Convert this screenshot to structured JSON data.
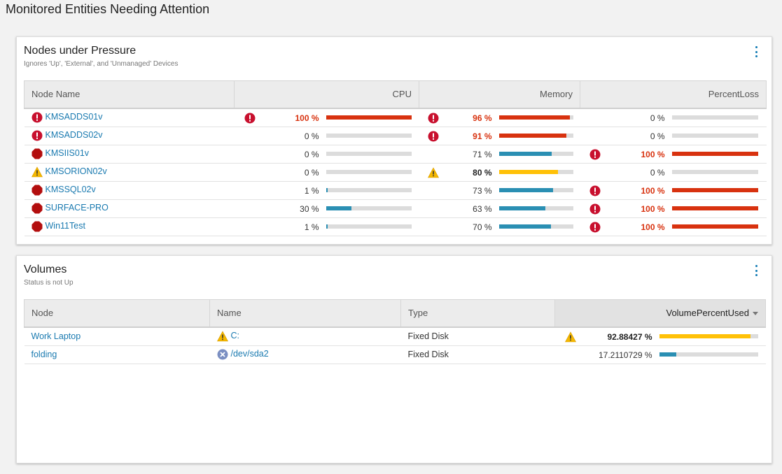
{
  "page": {
    "title": "Monitored Entities Needing Attention"
  },
  "colors": {
    "critical": "#d8320f",
    "warning": "#ffc107",
    "normal": "#2a8fb3",
    "track": "#dcdcdc",
    "link": "#1a7ab0"
  },
  "nodes_widget": {
    "title": "Nodes under Pressure",
    "subtitle": "Ignores 'Up', 'External', and 'Unmanaged' Devices",
    "columns": {
      "name": "Node Name",
      "cpu": "CPU",
      "memory": "Memory",
      "loss": "PercentLoss"
    },
    "rows": [
      {
        "name": "KMSADDS01v",
        "status_icon": "critical-alert-icon",
        "cpu": {
          "label": "100 %",
          "pct": 100,
          "level": "critical"
        },
        "mem": {
          "label": "96 %",
          "pct": 96,
          "level": "critical"
        },
        "loss": {
          "label": "0 %",
          "pct": 0,
          "level": "normal"
        }
      },
      {
        "name": "KMSADDS02v",
        "status_icon": "critical-alert-icon",
        "cpu": {
          "label": "0 %",
          "pct": 0,
          "level": "normal"
        },
        "mem": {
          "label": "91 %",
          "pct": 91,
          "level": "critical"
        },
        "loss": {
          "label": "0 %",
          "pct": 0,
          "level": "normal"
        }
      },
      {
        "name": "KMSIIS01v",
        "status_icon": "down-octagon-icon",
        "cpu": {
          "label": "0 %",
          "pct": 0,
          "level": "normal"
        },
        "mem": {
          "label": "71 %",
          "pct": 71,
          "level": "normal"
        },
        "loss": {
          "label": "100 %",
          "pct": 100,
          "level": "critical"
        }
      },
      {
        "name": "KMSORION02v",
        "status_icon": "warning-triangle-icon",
        "cpu": {
          "label": "0 %",
          "pct": 0,
          "level": "normal"
        },
        "mem": {
          "label": "80 %",
          "pct": 80,
          "level": "warning"
        },
        "loss": {
          "label": "0 %",
          "pct": 0,
          "level": "normal"
        }
      },
      {
        "name": "KMSSQL02v",
        "status_icon": "down-octagon-icon",
        "cpu": {
          "label": "1 %",
          "pct": 1,
          "level": "normal"
        },
        "mem": {
          "label": "73 %",
          "pct": 73,
          "level": "normal"
        },
        "loss": {
          "label": "100 %",
          "pct": 100,
          "level": "critical"
        }
      },
      {
        "name": "SURFACE-PRO",
        "status_icon": "down-octagon-icon",
        "cpu": {
          "label": "30 %",
          "pct": 30,
          "level": "normal"
        },
        "mem": {
          "label": "63 %",
          "pct": 63,
          "level": "normal"
        },
        "loss": {
          "label": "100 %",
          "pct": 100,
          "level": "critical"
        }
      },
      {
        "name": "Win11Test",
        "status_icon": "down-octagon-icon",
        "cpu": {
          "label": "1 %",
          "pct": 1,
          "level": "normal"
        },
        "mem": {
          "label": "70 %",
          "pct": 70,
          "level": "normal"
        },
        "loss": {
          "label": "100 %",
          "pct": 100,
          "level": "critical"
        }
      }
    ]
  },
  "volumes_widget": {
    "title": "Volumes",
    "subtitle": "Status is not Up",
    "columns": {
      "node": "Node",
      "name": "Name",
      "type": "Type",
      "used": "VolumePercentUsed"
    },
    "rows": [
      {
        "node": "Work Laptop",
        "name": "C:",
        "status_icon": "warning-triangle-icon",
        "type": "Fixed Disk",
        "used": {
          "label": "92.88427 %",
          "pct": 92.88427,
          "level": "warning"
        }
      },
      {
        "node": "folding",
        "name": "/dev/sda2",
        "status_icon": "unknown-x-icon",
        "type": "Fixed Disk",
        "used": {
          "label": "17.2110729 %",
          "pct": 17.2110729,
          "level": "normal"
        }
      }
    ]
  }
}
